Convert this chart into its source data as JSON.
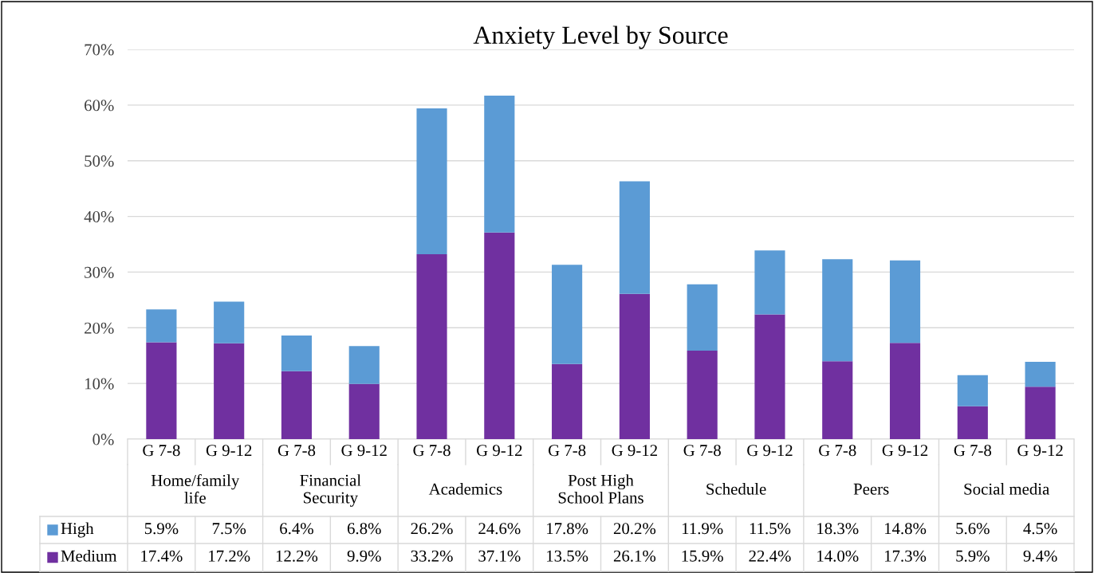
{
  "chart_data": {
    "type": "bar",
    "title": "Anxiety Level by Source",
    "stacked": true,
    "legend": "bottom",
    "grid": "y",
    "categories": [
      "G 7-8",
      "G 9-12",
      "G 7-8",
      "G 9-12",
      "G 7-8",
      "G 9-12",
      "G 7-8",
      "G 9-12",
      "G 7-8",
      "G 9-12",
      "G 7-8",
      "G 9-12",
      "G 7-8",
      "G 9-12"
    ],
    "annotations": [
      "Home/family life",
      "Financial Security",
      "Academics",
      "Post High School Plans",
      "Schedule",
      "Peers",
      "Social media"
    ],
    "series": [
      {
        "name": "Medium",
        "color": "#7030a0",
        "values": [
          17.4,
          17.2,
          12.2,
          9.9,
          33.2,
          37.1,
          13.5,
          26.1,
          15.9,
          22.4,
          14.0,
          17.3,
          5.9,
          9.4
        ],
        "value_labels": [
          "17.4%",
          "17.2%",
          "12.2%",
          "9.9%",
          "33.2%",
          "37.1%",
          "13.5%",
          "26.1%",
          "15.9%",
          "22.4%",
          "14.0%",
          "17.3%",
          "5.9%",
          "9.4%"
        ]
      },
      {
        "name": "High",
        "color": "#5b9bd5",
        "values": [
          5.9,
          7.5,
          6.4,
          6.8,
          26.2,
          24.6,
          17.8,
          20.2,
          11.9,
          11.5,
          18.3,
          14.8,
          5.6,
          4.5
        ],
        "value_labels": [
          "5.9%",
          "7.5%",
          "6.4%",
          "6.8%",
          "26.2%",
          "24.6%",
          "17.8%",
          "20.2%",
          "11.9%",
          "11.5%",
          "18.3%",
          "14.8%",
          "5.6%",
          "4.5%"
        ]
      }
    ],
    "ylim": [
      0,
      70
    ],
    "yticks": [
      {
        "value": 0,
        "label": "0%"
      },
      {
        "value": 10,
        "label": "10%"
      },
      {
        "value": 20,
        "label": "20%"
      },
      {
        "value": 30,
        "label": "30%"
      },
      {
        "value": 40,
        "label": "40%"
      },
      {
        "value": 50,
        "label": "50%"
      },
      {
        "value": 60,
        "label": "60%"
      },
      {
        "value": 70,
        "label": "70%"
      }
    ]
  }
}
